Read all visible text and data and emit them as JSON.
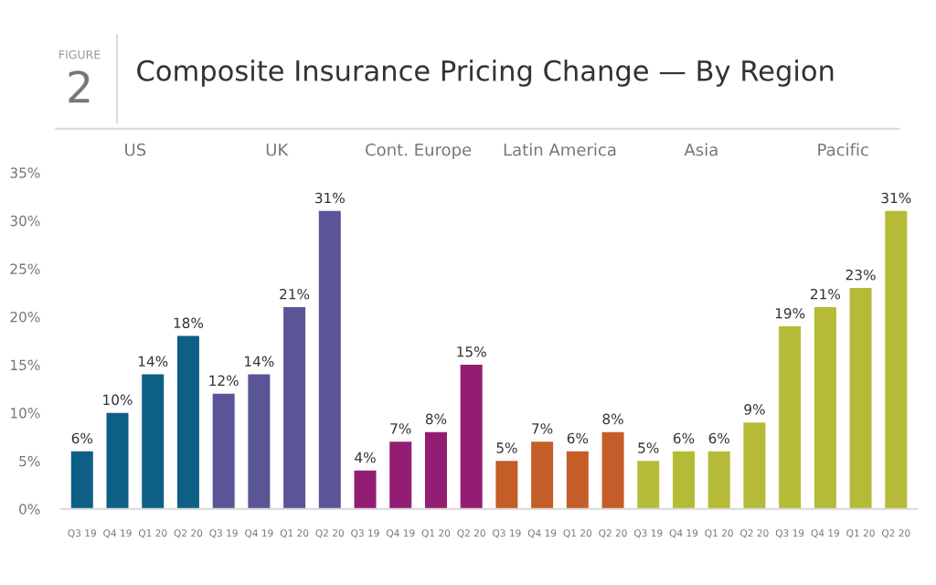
{
  "chart_data": {
    "type": "bar",
    "title": "Composite Insurance Pricing Change — By Region",
    "annotations": [
      "FIGURE",
      "2",
      "US",
      "UK",
      "Cont. Europe",
      "Latin America",
      "Asia",
      "Pacific"
    ],
    "categories": [
      "Q3 19",
      "Q4 19",
      "Q1 20",
      "Q2 20",
      "Q3 19",
      "Q4 19",
      "Q1 20",
      "Q2 20",
      "Q3 19",
      "Q4 19",
      "Q1 20",
      "Q2 20",
      "Q3 19",
      "Q4 19",
      "Q1 20",
      "Q2 20",
      "Q3 19",
      "Q4 19",
      "Q1 20",
      "Q2 20",
      "Q3 19",
      "Q4 19",
      "Q1 20",
      "Q2 20"
    ],
    "series": [
      {
        "color": "#0e5f86",
        "values": [
          6,
          10,
          14,
          18,
          null,
          null,
          null,
          null,
          null,
          null,
          null,
          null,
          null,
          null,
          null,
          null,
          null,
          null,
          null,
          null,
          null,
          null,
          null,
          null
        ],
        "value_labels": [
          "6%",
          "10%",
          "14%",
          "18%",
          null,
          null,
          null,
          null,
          null,
          null,
          null,
          null,
          null,
          null,
          null,
          null,
          null,
          null,
          null,
          null,
          null,
          null,
          null,
          null
        ]
      },
      {
        "color": "#5a5597",
        "values": [
          null,
          null,
          null,
          null,
          12,
          14,
          21,
          31,
          null,
          null,
          null,
          null,
          null,
          null,
          null,
          null,
          null,
          null,
          null,
          null,
          null,
          null,
          null,
          null
        ],
        "value_labels": [
          null,
          null,
          null,
          null,
          "12%",
          "14%",
          "21%",
          "31%",
          null,
          null,
          null,
          null,
          null,
          null,
          null,
          null,
          null,
          null,
          null,
          null,
          null,
          null,
          null,
          null
        ]
      },
      {
        "color": "#931d73",
        "values": [
          null,
          null,
          null,
          null,
          null,
          null,
          null,
          null,
          4,
          7,
          8,
          15,
          null,
          null,
          null,
          null,
          null,
          null,
          null,
          null,
          null,
          null,
          null,
          null
        ],
        "value_labels": [
          null,
          null,
          null,
          null,
          null,
          null,
          null,
          null,
          "4%",
          "7%",
          "8%",
          "15%",
          null,
          null,
          null,
          null,
          null,
          null,
          null,
          null,
          null,
          null,
          null,
          null
        ]
      },
      {
        "color": "#c45d27",
        "values": [
          null,
          null,
          null,
          null,
          null,
          null,
          null,
          null,
          null,
          null,
          null,
          null,
          5,
          7,
          6,
          8,
          null,
          null,
          null,
          null,
          null,
          null,
          null,
          null
        ],
        "value_labels": [
          null,
          null,
          null,
          null,
          null,
          null,
          null,
          null,
          null,
          null,
          null,
          null,
          "5%",
          "7%",
          "6%",
          "8%",
          null,
          null,
          null,
          null,
          null,
          null,
          null,
          null
        ]
      },
      {
        "color": "#b5bb36",
        "values": [
          null,
          null,
          null,
          null,
          null,
          null,
          null,
          null,
          null,
          null,
          null,
          null,
          null,
          null,
          null,
          null,
          5,
          6,
          6,
          9,
          null,
          null,
          null,
          null
        ],
        "value_labels": [
          null,
          null,
          null,
          null,
          null,
          null,
          null,
          null,
          null,
          null,
          null,
          null,
          null,
          null,
          null,
          null,
          "5%",
          "6%",
          "6%",
          "9%",
          null,
          null,
          null,
          null
        ]
      },
      {
        "color": "#b5bb36",
        "values": [
          null,
          null,
          null,
          null,
          null,
          null,
          null,
          null,
          null,
          null,
          null,
          null,
          null,
          null,
          null,
          null,
          null,
          null,
          null,
          null,
          19,
          21,
          23,
          31
        ],
        "value_labels": [
          null,
          null,
          null,
          null,
          null,
          null,
          null,
          null,
          null,
          null,
          null,
          null,
          null,
          null,
          null,
          null,
          null,
          null,
          null,
          null,
          "19%",
          "21%",
          "23%",
          "31%"
        ]
      }
    ],
    "ylim": [
      0,
      35
    ],
    "yticks": [
      {
        "value": 0,
        "label": "0%"
      },
      {
        "value": 5,
        "label": "5%"
      },
      {
        "value": 10,
        "label": "10%"
      },
      {
        "value": 15,
        "label": "15%"
      },
      {
        "value": 20,
        "label": "20%"
      },
      {
        "value": 25,
        "label": "25%"
      },
      {
        "value": 30,
        "label": "30%"
      },
      {
        "value": 35,
        "label": "35%"
      }
    ]
  }
}
